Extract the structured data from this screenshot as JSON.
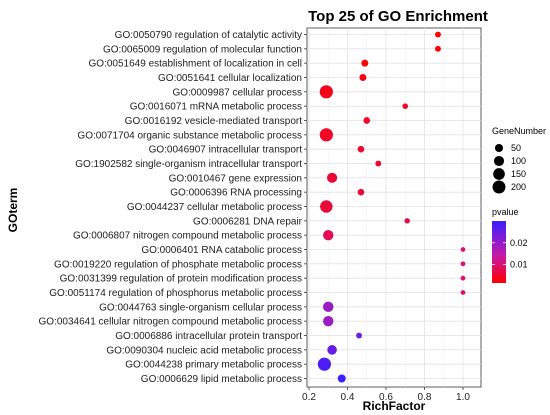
{
  "chart_data": {
    "type": "scatter",
    "title": "Top 25 of GO Enrichment",
    "xlabel": "RichFactor",
    "ylabel": "GOterm",
    "xlim": [
      0.2,
      1.05
    ],
    "xticks": [
      "0.2",
      "0.4",
      "0.6",
      "0.8",
      "1.0"
    ],
    "grid": true,
    "terms": [
      "GO:0050790 regulation of catalytic activity",
      "GO:0065009 regulation of molecular function",
      "GO:0051649 establishment of localization in cell",
      "GO:0051641 cellular localization",
      "GO:0009987 cellular process",
      "GO:0016071 mRNA metabolic process",
      "GO:0016192 vesicle-mediated transport",
      "GO:0071704 organic substance metabolic process",
      "GO:0046907 intracellular transport",
      "GO:1902582 single-organism intracellular transport",
      "GO:0010467 gene expression",
      "GO:0006396 RNA processing",
      "GO:0044237 cellular metabolic process",
      "GO:0006281 DNA repair",
      "GO:0006807 nitrogen compound metabolic process",
      "GO:0006401 RNA catabolic process",
      "GO:0019220 regulation of phosphate metabolic process",
      "GO:0031399 regulation of protein modification process",
      "GO:0051174 regulation of phosphorus metabolic process",
      "GO:0044763 single-organism cellular process",
      "GO:0034641 cellular nitrogen compound metabolic process",
      "GO:0006886 intracellular protein transport",
      "GO:0090304 nucleic acid metabolic process",
      "GO:0044238 primary metabolic process",
      "GO:0006629 lipid metabolic process"
    ],
    "rich_factor": [
      0.87,
      0.87,
      0.49,
      0.48,
      0.29,
      0.7,
      0.5,
      0.29,
      0.47,
      0.56,
      0.32,
      0.47,
      0.29,
      0.71,
      0.3,
      1.0,
      1.0,
      1.0,
      1.0,
      0.3,
      0.3,
      0.46,
      0.32,
      0.28,
      0.37
    ],
    "gene_number": [
      15,
      15,
      30,
      30,
      210,
      12,
      25,
      210,
      25,
      15,
      100,
      25,
      180,
      10,
      110,
      5,
      5,
      5,
      5,
      110,
      110,
      15,
      85,
      210,
      50
    ],
    "pvalue": [
      0.0015,
      0.0015,
      0.002,
      0.0025,
      0.0035,
      0.004,
      0.0045,
      0.0045,
      0.005,
      0.005,
      0.0055,
      0.0055,
      0.006,
      0.007,
      0.008,
      0.01,
      0.01,
      0.01,
      0.01,
      0.019,
      0.019,
      0.024,
      0.025,
      0.028,
      0.03
    ],
    "size_legend": {
      "title": "GeneNumber",
      "labels": [
        "50",
        "100",
        "150",
        "200"
      ],
      "values": [
        50,
        100,
        150,
        200
      ]
    },
    "color_legend": {
      "title": "pvalue",
      "labels": [
        "0.02",
        "0.01"
      ],
      "values": [
        0.02,
        0.01
      ],
      "range": [
        0.0015,
        0.03
      ],
      "low_color": "#FF0000",
      "high_color": "#3A1FFF"
    }
  }
}
